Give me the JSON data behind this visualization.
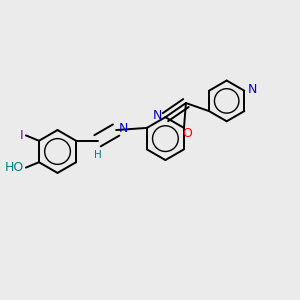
{
  "background_color": "#ebebeb",
  "bond_color": "#000000",
  "atom_colors": {
    "N": "#0000cc",
    "O": "#ff0000",
    "I": "#8800aa",
    "HO": "#008080",
    "H": "#008080"
  },
  "font_size": 9,
  "figsize": [
    3.0,
    3.0
  ],
  "dpi": 100,
  "bond_lw": 1.4,
  "double_sep": 0.018
}
